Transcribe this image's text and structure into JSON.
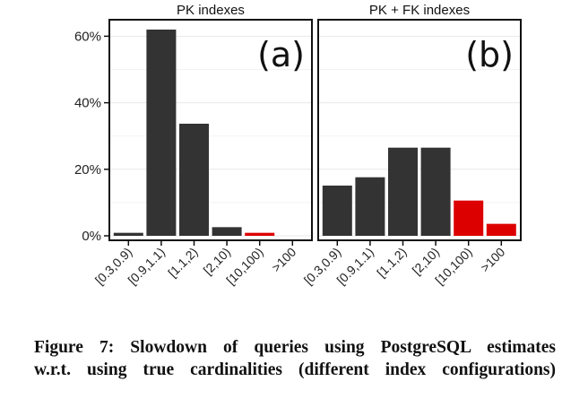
{
  "chart_data": [
    {
      "type": "bar",
      "title": "PK indexes",
      "panel_label": "(a)",
      "categories": [
        "[0.3,0.9)",
        "[0.9,1.1)",
        "[1.1,2)",
        "[2,10)",
        "[10,100)",
        ">100"
      ],
      "values": [
        0.9,
        62,
        33.7,
        2.6,
        0.9,
        0
      ],
      "colors": [
        "#333333",
        "#333333",
        "#333333",
        "#333333",
        "#dd0000",
        "#dd0000"
      ],
      "xlabel": "",
      "ylabel": "",
      "ylim": [
        0,
        65
      ],
      "yticks": [
        "0%",
        "20%",
        "40%",
        "60%"
      ],
      "ytick_values": [
        0,
        20,
        40,
        60
      ],
      "grid": true
    },
    {
      "type": "bar",
      "title": "PK + FK indexes",
      "panel_label": "(b)",
      "categories": [
        "[0.3,0.9)",
        "[0.9,1.1)",
        "[1.1,2)",
        "[2,10)",
        "[10,100)",
        ">100"
      ],
      "values": [
        15.1,
        17.6,
        26.5,
        26.5,
        10.6,
        3.6
      ],
      "colors": [
        "#333333",
        "#333333",
        "#333333",
        "#333333",
        "#dd0000",
        "#dd0000"
      ],
      "xlabel": "",
      "ylabel": "",
      "ylim": [
        0,
        65
      ],
      "grid": true
    }
  ],
  "caption": {
    "line1": "Figure 7:  Slowdown of queries using PostgreSQL estimates",
    "line2": "w.r.t. using true cardinalities (different index configurations)"
  }
}
